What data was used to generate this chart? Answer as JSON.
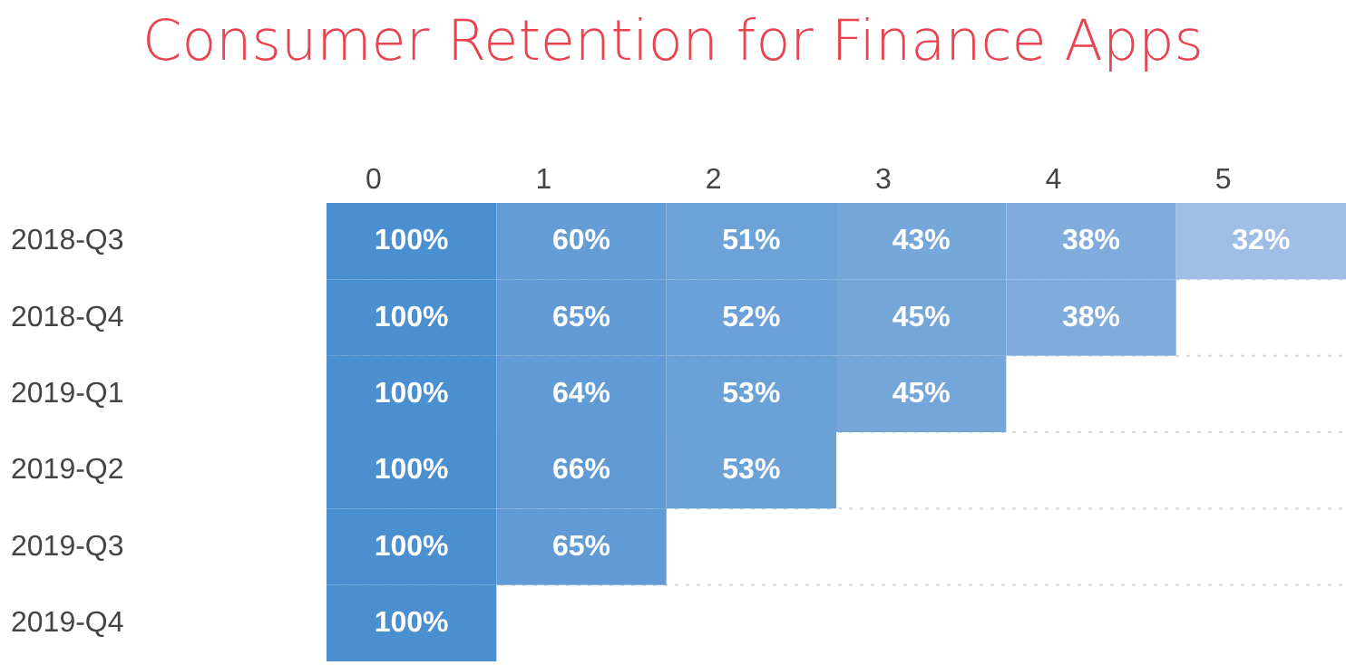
{
  "chart_data": {
    "type": "heatmap",
    "title": "Consumer Retention for Finance Apps",
    "categories": [
      "0",
      "1",
      "2",
      "3",
      "4",
      "5"
    ],
    "y_categories": [
      "2018-Q3",
      "2018-Q4",
      "2019-Q1",
      "2019-Q2",
      "2019-Q3",
      "2019-Q4"
    ],
    "cells": [
      [
        100,
        60,
        51,
        43,
        38,
        32
      ],
      [
        100,
        65,
        52,
        45,
        38,
        null
      ],
      [
        100,
        64,
        53,
        45,
        null,
        null
      ],
      [
        100,
        66,
        53,
        null,
        null,
        null
      ],
      [
        100,
        65,
        null,
        null,
        null,
        null
      ],
      [
        100,
        null,
        null,
        null,
        null,
        null
      ]
    ],
    "cell_labels": [
      [
        "100%",
        "60%",
        "51%",
        "43%",
        "38%",
        "32%"
      ],
      [
        "100%",
        "65%",
        "52%",
        "45%",
        "38%",
        null
      ],
      [
        "100%",
        "64%",
        "53%",
        "45%",
        null,
        null
      ],
      [
        "100%",
        "66%",
        "53%",
        null,
        null,
        null
      ],
      [
        "100%",
        "65%",
        null,
        null,
        null,
        null
      ],
      [
        "100%",
        null,
        null,
        null,
        null,
        null
      ]
    ],
    "colors": [
      "#a0bee5",
      "#4a8fcf"
    ],
    "grid": "y"
  }
}
